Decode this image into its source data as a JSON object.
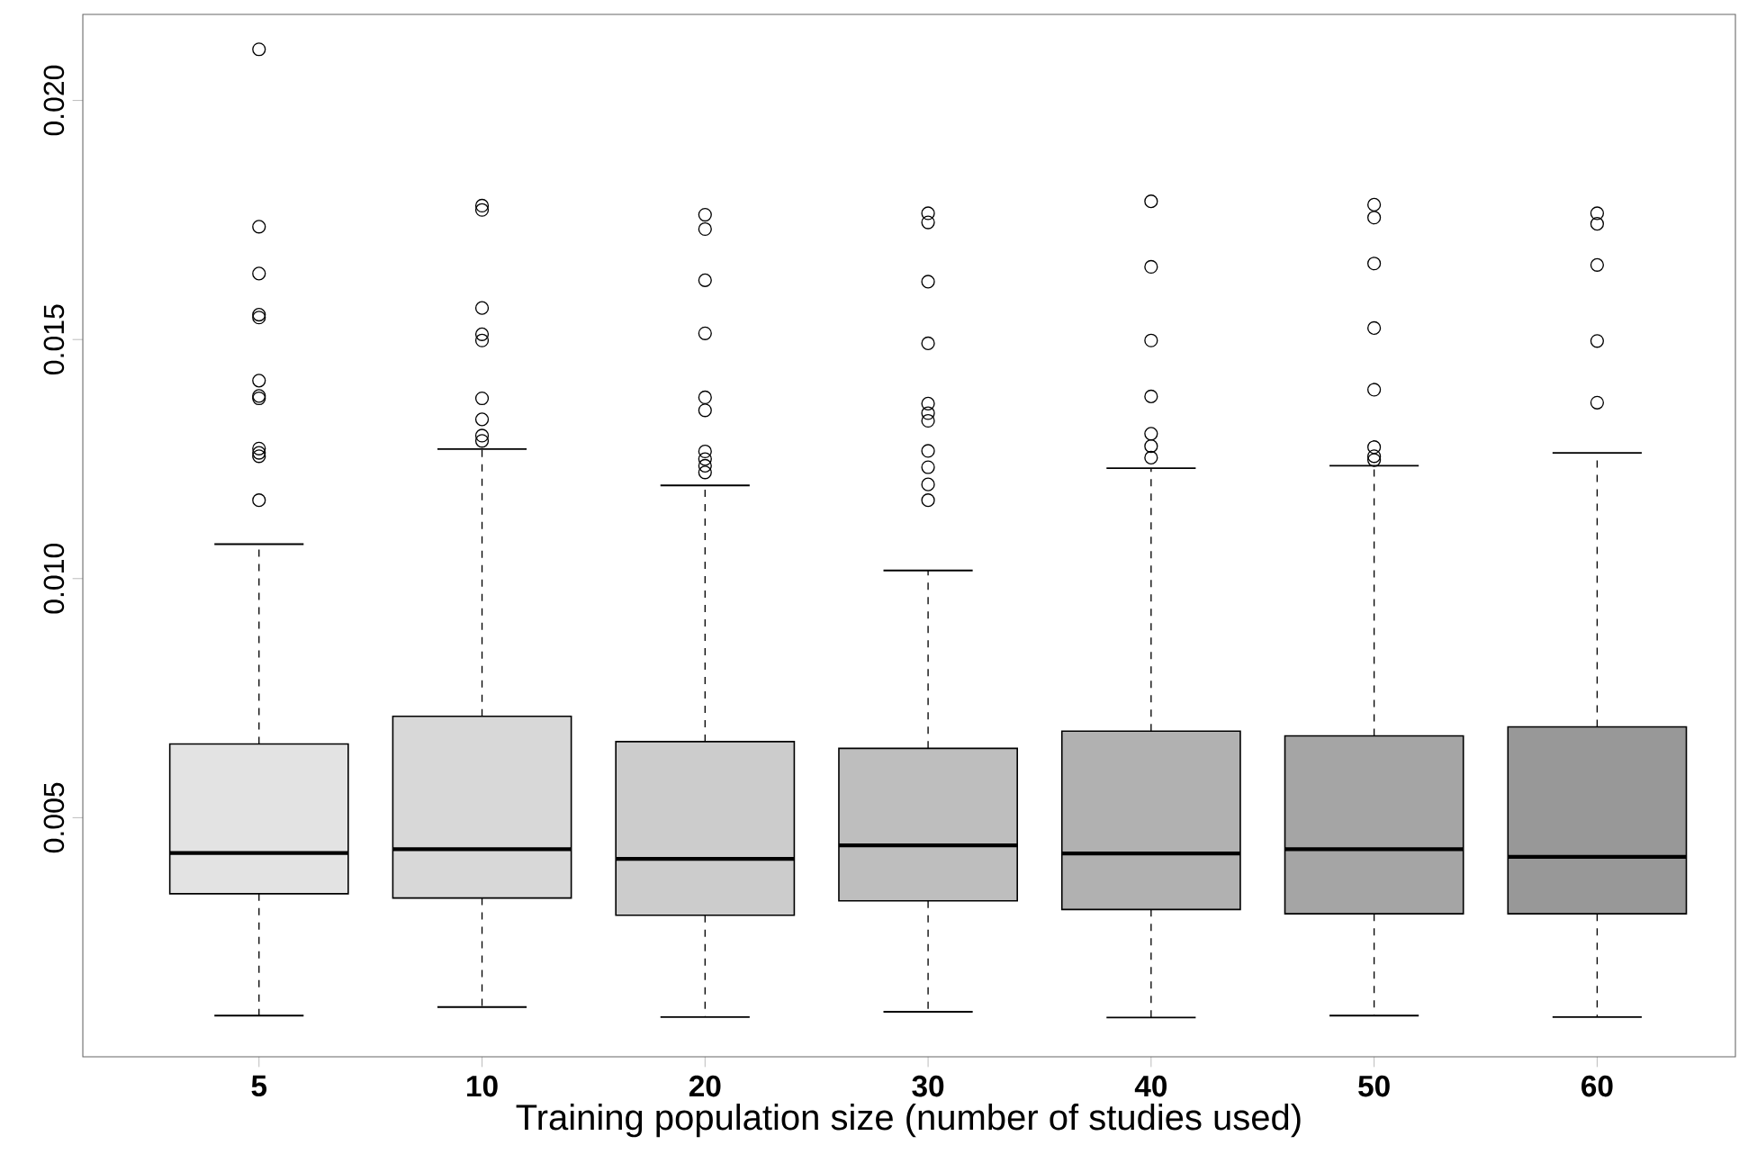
{
  "chart_data": {
    "type": "box",
    "xlabel": "Training population size (number of studies used)",
    "categories": [
      "5",
      "10",
      "20",
      "30",
      "40",
      "50",
      "60"
    ],
    "colors": [
      "#e3e3e3",
      "#d8d8d8",
      "#cccccc",
      "#bebebe",
      "#b1b1b1",
      "#a5a5a5",
      "#989898"
    ],
    "boxes": [
      {
        "low": 0.00086,
        "q1": 0.00341,
        "median": 0.00426,
        "q3": 0.00654,
        "high": 0.01072,
        "outliers": [
          0.02107,
          0.01736,
          0.01638,
          0.01552,
          0.01546,
          0.01414,
          0.01382,
          0.01377,
          0.01272,
          0.01263,
          0.01256,
          0.01164
        ]
      },
      {
        "low": 0.00104,
        "q1": 0.00332,
        "median": 0.00434,
        "q3": 0.00712,
        "high": 0.01271,
        "outliers": [
          0.0178,
          0.01771,
          0.01566,
          0.01511,
          0.01498,
          0.01377,
          0.01333,
          0.01299,
          0.01288
        ]
      },
      {
        "low": 0.00083,
        "q1": 0.00296,
        "median": 0.00414,
        "q3": 0.00659,
        "high": 0.01195,
        "outliers": [
          0.01761,
          0.01731,
          0.01624,
          0.01513,
          0.01379,
          0.01352,
          0.01266,
          0.0125,
          0.01236,
          0.01222
        ]
      },
      {
        "low": 0.00094,
        "q1": 0.00326,
        "median": 0.00442,
        "q3": 0.00645,
        "high": 0.01017,
        "outliers": [
          0.01764,
          0.01745,
          0.01621,
          0.01492,
          0.01366,
          0.01346,
          0.0133,
          0.01267,
          0.01233,
          0.01197,
          0.01164
        ]
      },
      {
        "low": 0.00082,
        "q1": 0.00308,
        "median": 0.00425,
        "q3": 0.00681,
        "high": 0.01231,
        "outliers": [
          0.01789,
          0.01652,
          0.01498,
          0.01381,
          0.01303,
          0.01277,
          0.01253
        ]
      },
      {
        "low": 0.00086,
        "q1": 0.00299,
        "median": 0.00434,
        "q3": 0.00671,
        "high": 0.01236,
        "outliers": [
          0.01782,
          0.01755,
          0.01659,
          0.01524,
          0.01395,
          0.01275,
          0.01256,
          0.01248
        ]
      },
      {
        "low": 0.00083,
        "q1": 0.00299,
        "median": 0.00418,
        "q3": 0.0069,
        "high": 0.01263,
        "outliers": [
          0.01764,
          0.01742,
          0.01656,
          0.01497,
          0.01368
        ]
      }
    ],
    "ylim": [
      0,
      0.0218
    ],
    "yticks": [
      {
        "value": 0.005,
        "label": "0.005"
      },
      {
        "value": 0.01,
        "label": "0.010"
      },
      {
        "value": 0.015,
        "label": "0.015"
      },
      {
        "value": 0.02,
        "label": "0.020"
      }
    ]
  }
}
